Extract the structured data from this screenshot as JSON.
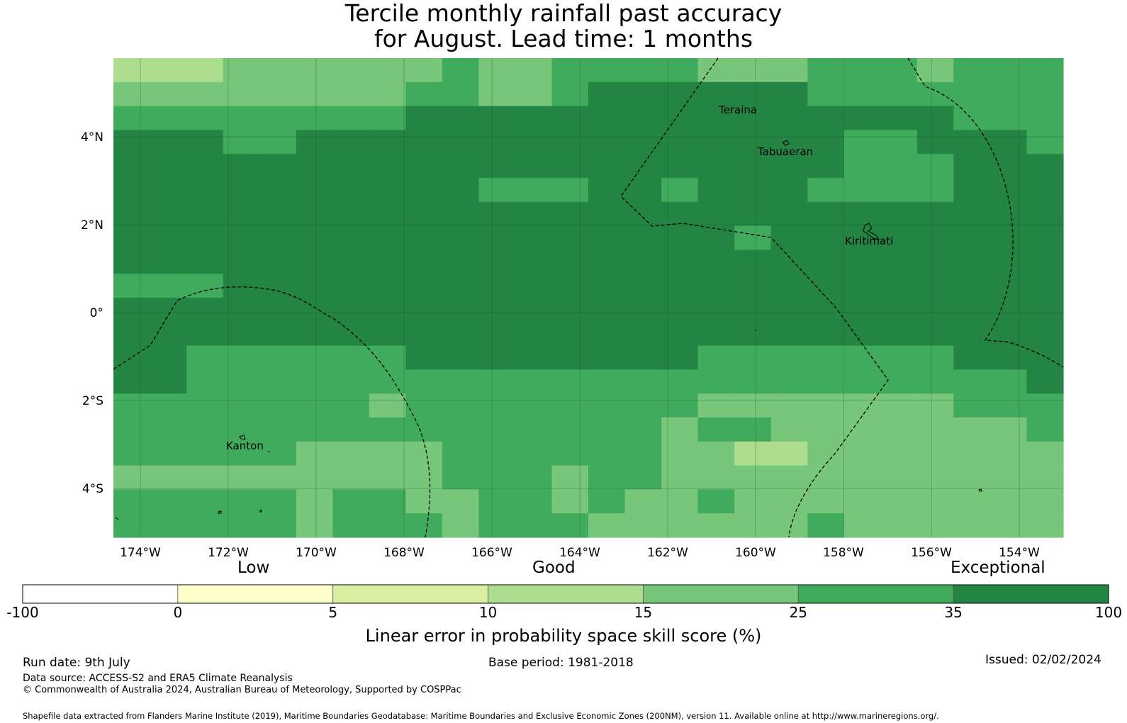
{
  "title_line1": "Tercile monthly rainfall past accuracy",
  "title_line2": "for August. Lead time: 1 months",
  "map": {
    "lon_ticks": [
      "174°W",
      "172°W",
      "170°W",
      "168°W",
      "166°W",
      "164°W",
      "162°W",
      "160°W",
      "158°W",
      "156°W",
      "154°W"
    ],
    "lat_ticks": [
      "4°N",
      "2°N",
      "0°",
      "2°S",
      "4°S"
    ],
    "places": [
      "Teraina",
      "Tabuaeran",
      "Kiritimati",
      "Kanton"
    ],
    "class_colors": {
      "1": "#ffffcc",
      "2": "#d9f0a3",
      "3": "#addd8e",
      "4": "#78c679",
      "5": "#41ab5d",
      "6": "#238443"
    },
    "cell_rows": [
      "66666666665555555555656666665555566663655555555555666666664666666666666666666666566666666666666666666666666666666666666666666666666655555555555555",
      "55555555555555555555555555555555555555555555555555666666666666666666666666666666666666666666666666666666666666666666666666666655555555555555555555555",
      "55555555555555555555555555555555555555555555555555555555555555555555555555555555555555555555555555555555555555555555555555555555555555555555555555555",
      "55555555555555555555555555555555555555555555555555555555555555555555555555555555555555555555555555555555555555555555555555555555555555555555555555555"
    ],
    "grid": {
      "cols": 26,
      "rows": 20,
      "cells": [
        "43344444344444444444433444",
        "44444444444544555555455555",
        "44444444445545555555555554",
        "55554455555555555555555555",
        "55555555555555555555555555",
        "55555555555555555555555555",
        "55555555555555555555555555",
        "55555555555555555555555555",
        "55555555555555555555555555",
        "55555555555555555555555555",
        "55555555555555555555555555",
        "55555555555555555555555555",
        "55555555555555555555555555",
        "55555555555555555555555555",
        "55555555555555555555555555",
        "55555555555555555555555555",
        "55555555555555555555555555",
        "55555555555555555555555555",
        "55555555555555555555555555",
        "55555555555555555555555555"
      ]
    }
  },
  "legend": {
    "categories": [
      "Low",
      "Good",
      "Exceptional"
    ],
    "ticks": [
      "-100",
      "0",
      "5",
      "10",
      "15",
      "25",
      "35",
      "100"
    ],
    "colors": [
      "#ffffff",
      "#ffffcc",
      "#d9f0a3",
      "#addd8e",
      "#78c679",
      "#41ab5d",
      "#238443"
    ],
    "label": "Linear error in probability space skill score (%)"
  },
  "footer": {
    "run_date": "Run date: 9th July",
    "base_period": "Base period: 1981-2018",
    "issued": "Issued: 02/02/2024",
    "data_source": "Data source: ACCESS-S2 and ERA5 Climate Reanalysis",
    "copyright": "© Commonwealth of Australia 2024, Australian Bureau of Meteorology, Supported by COSPPac",
    "shapefile": "Shapefile data extracted from Flanders Marine Institute (2019), Maritime Boundaries Geodatabase: Maritime Boundaries and Exclusive Economic Zones (200NM), version 11. Available online at http://www.marineregions.org/."
  }
}
